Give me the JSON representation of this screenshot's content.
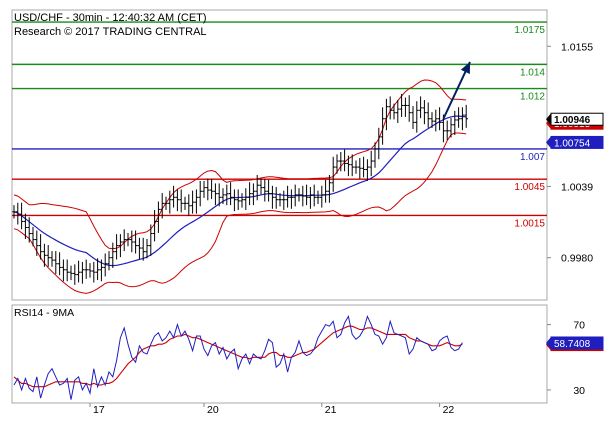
{
  "header": {
    "line1": "USD/CHF - 30min - 12:40:32 AM (CET)",
    "line2": "Research © 2017 TRADING CENTRAL"
  },
  "colors": {
    "resistance": "#1a8a1a",
    "support": "#cc0000",
    "pivot": "#1f1fbf",
    "price_bar": "#000000",
    "bollinger": "#cc0000",
    "moving_average": "#1f1fbf",
    "rsi": "#1f1fbf",
    "rsi_ma": "#cc0000",
    "arrow": "#00205f",
    "current_price_tag": "#000000",
    "bb_upper_tag": "#cc0000",
    "ma_tag": "#1f1fbf"
  },
  "chart_data": [
    {
      "type": "ohlc",
      "title": "USD/CHF - 30min - 12:40:32 AM (CET)",
      "subtitle": "Research © 2017 TRADING CENTRAL",
      "ylim": [
        0.9945,
        1.0185
      ],
      "y_ticks": [
        0.998,
        1.0039,
        1.0155
      ],
      "y_tick_labels": [
        "0.9980",
        "1.0039",
        "1.0155"
      ],
      "x_ticks": [
        {
          "label": "17",
          "bar": 20
        },
        {
          "label": "20",
          "bar": 50
        },
        {
          "label": "21",
          "bar": 81
        },
        {
          "label": "22",
          "bar": 112
        }
      ],
      "levels": [
        {
          "value": 1.0175,
          "label": "1.0175",
          "kind": "resistance"
        },
        {
          "value": 1.014,
          "label": "1.014",
          "kind": "resistance"
        },
        {
          "value": 1.012,
          "label": "1.012",
          "kind": "resistance"
        },
        {
          "value": 1.007,
          "label": "1.007",
          "kind": "pivot"
        },
        {
          "value": 1.0045,
          "label": "1.0045",
          "kind": "support"
        },
        {
          "value": 1.0015,
          "label": "1.0015",
          "kind": "support"
        }
      ],
      "value_tags": [
        {
          "value": 1.00946,
          "label": "1.00946",
          "kind": "current_price_tag"
        },
        {
          "value": 1.00913,
          "label": "1.00913",
          "kind": "bb_upper_tag"
        },
        {
          "value": 1.00754,
          "label": "1.00754",
          "kind": "ma_tag"
        }
      ],
      "arrow": {
        "from": {
          "bar": 113,
          "price": 1.0095
        },
        "to": {
          "bar": 120,
          "price": 1.0142
        }
      },
      "closes": [
        1.0018,
        1.0016,
        1.001,
        1.0005,
        1.0,
        0.9995,
        0.999,
        0.9985,
        0.9982,
        0.998,
        0.9978,
        0.9975,
        0.9972,
        0.997,
        0.9968,
        0.9967,
        0.9966,
        0.9968,
        0.997,
        0.997,
        0.9969,
        0.9968,
        0.997,
        0.9972,
        0.9975,
        0.998,
        0.9985,
        0.999,
        0.9993,
        0.9995,
        0.9995,
        0.9993,
        0.999,
        0.9988,
        0.9985,
        0.999,
        1.0,
        1.001,
        1.002,
        1.0025,
        1.0025,
        1.0028,
        1.003,
        1.0028,
        1.0025,
        1.0025,
        1.0023,
        1.0026,
        1.003,
        1.0035,
        1.0038,
        1.0036,
        1.0035,
        1.0033,
        1.003,
        1.0032,
        1.0033,
        1.003,
        1.0028,
        1.0027,
        1.0028,
        1.003,
        1.0033,
        1.0035,
        1.004,
        1.0038,
        1.0035,
        1.0033,
        1.003,
        1.0028,
        1.0028,
        1.0028,
        1.003,
        1.003,
        1.0032,
        1.0032,
        1.0031,
        1.003,
        1.0032,
        1.003,
        1.003,
        1.0032,
        1.0035,
        1.0042,
        1.0055,
        1.006,
        1.006,
        1.0058,
        1.0057,
        1.0055,
        1.0055,
        1.0054,
        1.0053,
        1.0055,
        1.006,
        1.007,
        1.008,
        1.0095,
        1.0105,
        1.0102,
        1.01,
        1.0103,
        1.0106,
        1.0106,
        1.01,
        1.0092,
        1.0102,
        1.0104,
        1.01,
        1.0095,
        1.0093,
        1.0095,
        1.0092,
        1.0085,
        1.0085,
        1.009,
        1.0094,
        1.0095,
        1.0098,
        1.0095
      ],
      "rsi": {
        "label": "RSI14 - 9MA",
        "ylim": [
          22,
          82
        ],
        "y_ticks": [
          30,
          70
        ],
        "values": [
          33,
          37,
          30,
          37,
          31,
          29,
          38,
          25,
          33,
          40,
          43,
          38,
          33,
          34,
          37,
          24,
          36,
          38,
          30,
          34,
          28,
          43,
          32,
          38,
          33,
          41,
          38,
          48,
          62,
          68,
          58,
          50,
          47,
          57,
          53,
          52,
          58,
          63,
          65,
          60,
          62,
          66,
          62,
          70,
          63,
          66,
          61,
          54,
          63,
          63,
          55,
          51,
          57,
          59,
          52,
          56,
          49,
          53,
          55,
          43,
          49,
          52,
          46,
          52,
          50,
          49,
          54,
          61,
          59,
          44,
          46,
          52,
          41,
          50,
          53,
          60,
          53,
          51,
          52,
          55,
          62,
          66,
          70,
          69,
          72,
          62,
          64,
          71,
          75,
          64,
          61,
          63,
          67,
          75,
          70,
          64,
          63,
          58,
          62,
          72,
          65,
          64,
          63,
          62,
          52,
          55,
          62,
          60,
          59,
          58,
          54,
          55,
          60,
          62,
          63,
          56,
          54,
          55,
          59
        ],
        "ma_values": [
          38,
          36,
          34,
          34,
          33,
          32,
          32,
          32,
          32,
          33,
          34,
          35,
          35,
          35,
          35,
          35,
          35,
          35,
          34,
          34,
          33,
          34,
          33,
          33,
          34,
          34,
          35,
          37,
          40,
          43,
          46,
          48,
          50,
          53,
          55,
          56,
          57,
          57,
          58,
          58,
          59,
          61,
          62,
          63,
          63,
          64,
          63,
          62,
          62,
          61,
          60,
          59,
          58,
          57,
          56,
          55,
          54,
          53,
          52,
          51,
          50,
          50,
          49,
          50,
          50,
          50,
          50,
          52,
          53,
          53,
          51,
          51,
          50,
          50,
          51,
          52,
          53,
          53,
          54,
          55,
          57,
          59,
          61,
          63,
          65,
          66,
          67,
          68,
          69,
          69,
          68,
          67,
          67,
          68,
          68,
          67,
          66,
          65,
          64,
          64,
          64,
          64,
          64,
          64,
          62,
          61,
          60,
          60,
          59,
          58,
          57,
          57,
          57,
          58,
          59,
          58,
          57,
          57,
          58
        ],
        "value_tags": [
          {
            "value": 58.7408,
            "label": "58.7408",
            "kind": "rsi"
          },
          {
            "value": 57.7678,
            "label": "57.7678",
            "kind": "rsi_ma"
          }
        ]
      }
    }
  ]
}
